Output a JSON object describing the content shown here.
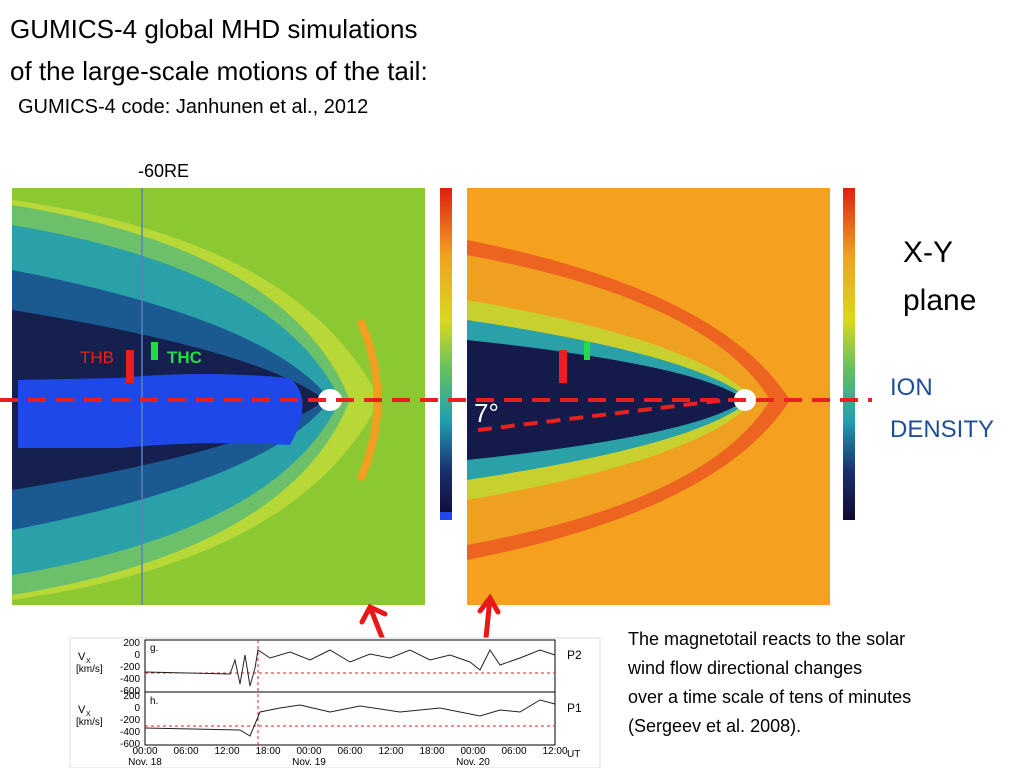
{
  "title": [
    "GUMICS-4 global MHD simulations",
    "of the large-scale motions of the tail:"
  ],
  "subtitle": "GUMICS-4 code:  Janhunen et al., 2012",
  "left_panel": {
    "marker_label": "-60RE",
    "spacecraft": [
      "THB",
      "THC"
    ]
  },
  "right_panel": {
    "angle_label": "7°"
  },
  "side_labels": {
    "plane": [
      "X-Y",
      "plane"
    ],
    "quantity": [
      "ION",
      "DENSITY"
    ]
  },
  "timeseries": {
    "panels": [
      {
        "letter": "g.",
        "probe": "P2"
      },
      {
        "letter": "h.",
        "probe": "P1"
      }
    ],
    "ylabel": [
      "V",
      "X",
      "[km/s]"
    ],
    "yticks": [
      "200",
      "0",
      "-200",
      "-400",
      "-600"
    ],
    "xticks": [
      "00:00",
      "06:00",
      "12:00",
      "18:00",
      "00:00",
      "06:00",
      "12:00",
      "18:00",
      "00:00",
      "06:00",
      "12:00"
    ],
    "dates": [
      "Nov. 18",
      "Nov. 19",
      "Nov. 20"
    ],
    "unit": "UT"
  },
  "caption": [
    "The magnetotail  reacts to the solar",
    "wind flow directional changes",
    "over a time scale of tens of minutes",
    "(Sergeev et al. 2008)."
  ]
}
